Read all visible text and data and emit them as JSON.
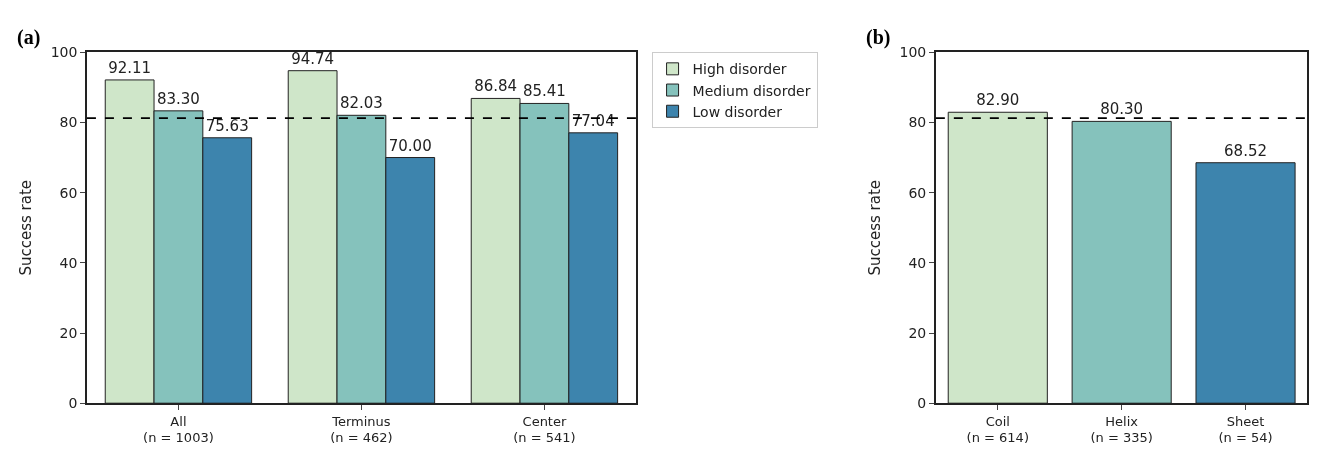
{
  "chart_data": [
    {
      "type": "bar",
      "title": "(a)",
      "ylabel": "Success rate",
      "categories": [
        "All\n(n = 1003)",
        "Terminus\n(n = 462)",
        "Center\n(n = 541)"
      ],
      "series": [
        {
          "name": "High disorder",
          "color": "#cfe6c9",
          "values": [
            92.11,
            94.74,
            86.84
          ],
          "value_labels": [
            "92.11",
            "94.74",
            "86.84"
          ]
        },
        {
          "name": "Medium disorder",
          "color": "#85c2bc",
          "values": [
            83.3,
            82.03,
            85.41
          ],
          "value_labels": [
            "83.30",
            "82.03",
            "85.41"
          ]
        },
        {
          "name": "Low disorder",
          "color": "#3d84ad",
          "values": [
            75.63,
            70.0,
            77.04
          ],
          "value_labels": [
            "75.63",
            "70.00",
            "77.04"
          ]
        }
      ],
      "ylim": [
        0,
        100
      ],
      "yticks": [
        0,
        20,
        40,
        60,
        80,
        100
      ],
      "legend": "top right",
      "ref_lines": [
        {
          "axis": "y",
          "value": 81.2,
          "line_style": "dashed",
          "color": "#000000"
        }
      ]
    },
    {
      "type": "bar",
      "title": "(b)",
      "ylabel": "Success rate",
      "categories": [
        "Coil\n(n = 614)",
        "Helix\n(n = 335)",
        "Sheet\n(n = 54)"
      ],
      "values": [
        82.9,
        80.3,
        68.52
      ],
      "value_labels": [
        "82.90",
        "80.30",
        "68.52"
      ],
      "colors": [
        "#cfe6c9",
        "#85c2bc",
        "#3d84ad"
      ],
      "ylim": [
        0,
        100
      ],
      "yticks": [
        0,
        20,
        40,
        60,
        80,
        100
      ],
      "legend": false,
      "ref_lines": [
        {
          "axis": "y",
          "value": 81.2,
          "line_style": "dashed",
          "color": "#000000"
        }
      ]
    }
  ]
}
